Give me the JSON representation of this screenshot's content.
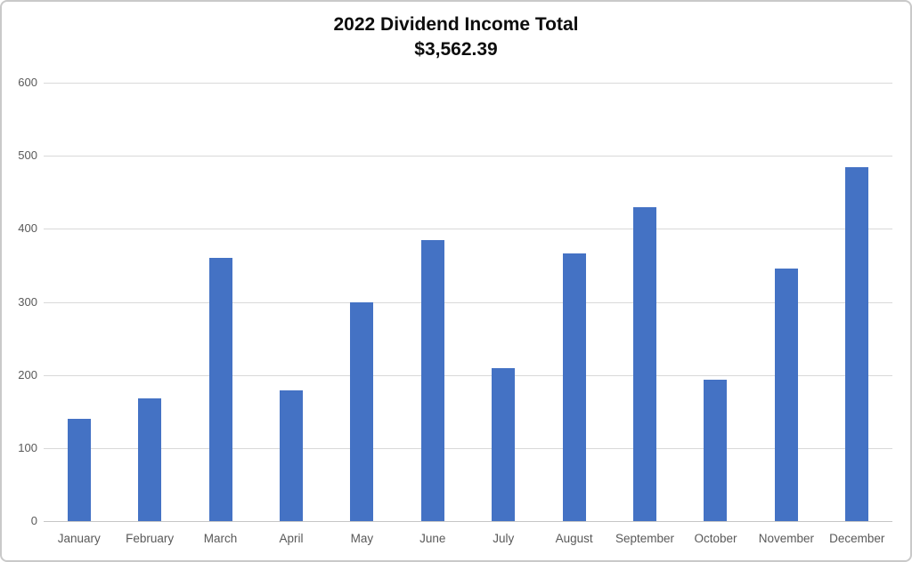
{
  "chart_data": {
    "type": "bar",
    "title": "2022 Dividend Income Total",
    "subtitle": "$3,562.39",
    "total_label": "$3,562.39",
    "xlabel": "",
    "ylabel": "",
    "categories": [
      "January",
      "February",
      "March",
      "April",
      "May",
      "June",
      "July",
      "August",
      "September",
      "October",
      "November",
      "December"
    ],
    "values": [
      140,
      168,
      360,
      179,
      300,
      384,
      209,
      366,
      430,
      194,
      346,
      485
    ],
    "ylim": [
      0,
      600
    ],
    "yticks": [
      0,
      100,
      200,
      300,
      400,
      500,
      600
    ],
    "grid": true,
    "legend": "none",
    "colors": {
      "bar": "#4472C4",
      "gridline": "#D9D9D9",
      "axis_line": "#C6C6C6",
      "axis_text": "#595959",
      "title_text": "#0D0D0D",
      "border": "#C9C9C9",
      "background": "#FFFFFF"
    }
  }
}
